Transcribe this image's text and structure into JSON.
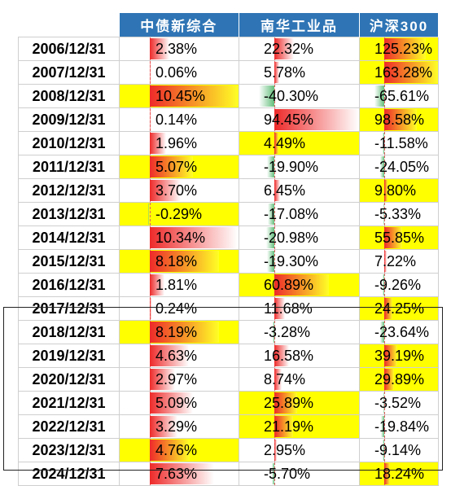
{
  "chart_data": {
    "type": "table",
    "columns": [
      "中债新综合",
      "南华工业品",
      "沪深300"
    ],
    "rows": [
      {
        "date": "2006/12/31",
        "values": [
          2.38,
          22.32,
          125.23
        ],
        "display": [
          "2.38%",
          "22.32%",
          "125.23%"
        ]
      },
      {
        "date": "2007/12/31",
        "values": [
          0.06,
          5.78,
          163.28
        ],
        "display": [
          "0.06%",
          "5.78%",
          "163.28%"
        ]
      },
      {
        "date": "2008/12/31",
        "values": [
          10.45,
          -40.3,
          -65.61
        ],
        "display": [
          "10.45%",
          "-40.30%",
          "-65.61%"
        ]
      },
      {
        "date": "2009/12/31",
        "values": [
          0.14,
          94.45,
          98.58
        ],
        "display": [
          "0.14%",
          "94.45%",
          "98.58%"
        ]
      },
      {
        "date": "2010/12/31",
        "values": [
          1.96,
          4.49,
          -11.58
        ],
        "display": [
          "1.96%",
          "4.49%",
          "-11.58%"
        ]
      },
      {
        "date": "2011/12/31",
        "values": [
          5.07,
          -19.9,
          -24.05
        ],
        "display": [
          "5.07%",
          "-19.90%",
          "-24.05%"
        ]
      },
      {
        "date": "2012/12/31",
        "values": [
          3.7,
          6.45,
          9.8
        ],
        "display": [
          "3.70%",
          "6.45%",
          "9.80%"
        ]
      },
      {
        "date": "2013/12/31",
        "values": [
          -0.29,
          -17.08,
          -5.33
        ],
        "display": [
          "-0.29%",
          "-17.08%",
          "-5.33%"
        ]
      },
      {
        "date": "2014/12/31",
        "values": [
          10.34,
          -20.98,
          55.85
        ],
        "display": [
          "10.34%",
          "-20.98%",
          "55.85%"
        ]
      },
      {
        "date": "2015/12/31",
        "values": [
          8.18,
          -19.3,
          7.22
        ],
        "display": [
          "8.18%",
          "-19.30%",
          "7.22%"
        ]
      },
      {
        "date": "2016/12/31",
        "values": [
          1.81,
          60.89,
          -9.26
        ],
        "display": [
          "1.81%",
          "60.89%",
          "-9.26%"
        ]
      },
      {
        "date": "2017/12/31",
        "values": [
          0.24,
          11.68,
          24.25
        ],
        "display": [
          "0.24%",
          "11.68%",
          "24.25%"
        ]
      },
      {
        "date": "2018/12/31",
        "values": [
          8.19,
          -3.28,
          -23.64
        ],
        "display": [
          "8.19%",
          "-3.28%",
          "-23.64%"
        ]
      },
      {
        "date": "2019/12/31",
        "values": [
          4.63,
          16.58,
          39.19
        ],
        "display": [
          "4.63%",
          "16.58%",
          "39.19%"
        ]
      },
      {
        "date": "2020/12/31",
        "values": [
          2.97,
          8.74,
          29.89
        ],
        "display": [
          "2.97%",
          "8.74%",
          "29.89%"
        ]
      },
      {
        "date": "2021/12/31",
        "values": [
          5.09,
          25.89,
          -3.52
        ],
        "display": [
          "5.09%",
          "25.89%",
          "-3.52%"
        ]
      },
      {
        "date": "2022/12/31",
        "values": [
          3.29,
          21.19,
          -19.84
        ],
        "display": [
          "3.29%",
          "21.19%",
          "-19.84%"
        ]
      },
      {
        "date": "2023/12/31",
        "values": [
          4.76,
          2.95,
          -9.14
        ],
        "display": [
          "4.76%",
          "2.95%",
          "-9.14%"
        ]
      },
      {
        "date": "2024/12/31",
        "values": [
          7.63,
          -5.7,
          18.24
        ],
        "display": [
          "7.63%",
          "-5.70%",
          "18.24%"
        ]
      }
    ],
    "highlight_best_in_row": true,
    "colors": {
      "header_bg": "#2f75b5",
      "header_text": "#ffffff",
      "highlight": "#ffff00",
      "positive_bar": "#ee2a2a",
      "negative_bar": "#63be7b"
    }
  }
}
